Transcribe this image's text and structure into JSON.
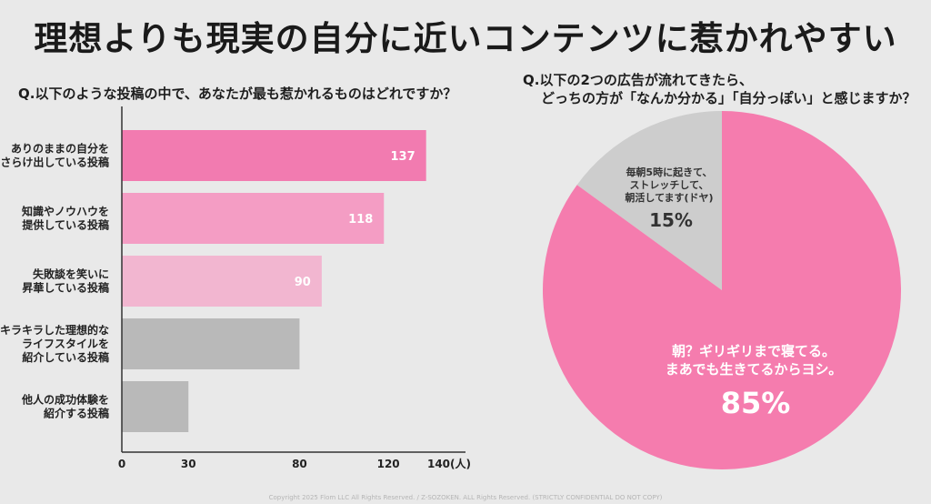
{
  "title": "理想よりも現実の自分に近いコンテンツに惹かれやすい",
  "question_left": "Q.以下のような投稿の中で、あなたが最も惹かれるものはどれですか？",
  "question_right": {
    "line1": "Q.以下の2つの広告が流れてきたら、",
    "line2": "どっちの方が「なんか分かる」「自分っぽい」と感じますか？"
  },
  "footer": "Copyright 2025 Flom LLC All Rights Reserved. / Z-SOZOKEN. ALL Rights Reserved. (STRICTLY CONFIDENTIAL DO NOT COPY)",
  "colors": {
    "pink_dark": "#f27bb0",
    "pink_mid": "#f49dc4",
    "pink_light": "#f2b6d0",
    "gray_bar": "#b9b9b9",
    "pie_pink": "#f57cae",
    "pie_gray": "#cdcdcd"
  },
  "chart_data": [
    {
      "type": "bar",
      "orientation": "horizontal",
      "categories": [
        [
          "ありのままの自分を",
          "さらけ出している投稿"
        ],
        [
          "知識やノウハウを",
          "提供している投稿"
        ],
        [
          "失敗談を笑いに",
          "昇華している投稿"
        ],
        [
          "キラキラした理想的な",
          "ライフスタイルを",
          "紹介している投稿"
        ],
        [
          "他人の成功体験を",
          "紹介する投稿"
        ]
      ],
      "values": [
        137,
        118,
        90,
        80,
        30
      ],
      "value_labels": [
        "137",
        "118",
        "90",
        "",
        ""
      ],
      "bar_colors": [
        "#f27bb0",
        "#f49dc4",
        "#f2b6d0",
        "#b9b9b9",
        "#b9b9b9"
      ],
      "xticks": [
        "0",
        "30",
        "80",
        "120",
        "140(人)"
      ],
      "xtick_values": [
        0,
        30,
        80,
        120,
        140
      ],
      "xlim": [
        0,
        140
      ]
    },
    {
      "type": "pie",
      "slices": [
        {
          "value": 85,
          "label_lines": [
            "朝？ギリギリまで寝てる。",
            "まあでも生きてるからヨシ。"
          ],
          "percent": "85%",
          "color": "#f57cae"
        },
        {
          "value": 15,
          "label_lines": [
            "毎朝5時に起きて、",
            "ストレッチして、",
            "朝活してます(ドヤ)"
          ],
          "percent": "15%",
          "color": "#cdcdcd"
        }
      ]
    }
  ]
}
